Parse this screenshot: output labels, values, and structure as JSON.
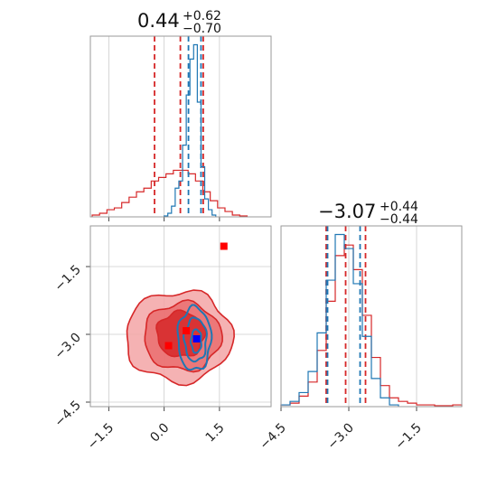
{
  "colors": {
    "red": "#d62728",
    "blue": "#1f77b4",
    "marker_blue": "#0000ff",
    "marker_red": "#ff0000",
    "grid": "#cccccc",
    "frame": "#9a9a9a"
  },
  "titles": {
    "p1": {
      "value": "0.44",
      "upper": "+0.62",
      "lower": "−0.70"
    },
    "p2": {
      "value": "−3.07",
      "upper": "+0.44",
      "lower": "−0.44"
    }
  },
  "chart_data": [
    {
      "type": "histogram",
      "panel": "top-left",
      "xlim": [
        -2.0,
        2.9
      ],
      "xticks": [
        -1.5,
        0.0,
        1.5
      ],
      "grid": true,
      "series": [
        {
          "color": "#d62728",
          "bin_centers": [
            -1.85,
            -1.65,
            -1.45,
            -1.25,
            -1.05,
            -0.85,
            -0.65,
            -0.45,
            -0.25,
            -0.05,
            0.15,
            0.35,
            0.55,
            0.75,
            0.95,
            1.15,
            1.35,
            1.55,
            1.75,
            1.95,
            2.15
          ],
          "heights": [
            0.01,
            0.02,
            0.04,
            0.05,
            0.08,
            0.11,
            0.14,
            0.16,
            0.2,
            0.22,
            0.24,
            0.26,
            0.26,
            0.24,
            0.2,
            0.14,
            0.09,
            0.05,
            0.03,
            0.01,
            0.005
          ],
          "quantile_lines": [
            -0.26,
            0.44,
            1.06
          ]
        },
        {
          "color": "#1f77b4",
          "bin_centers": [
            0.05,
            0.15,
            0.25,
            0.35,
            0.45,
            0.55,
            0.65,
            0.75,
            0.85,
            0.95,
            1.05,
            1.15,
            1.25,
            1.35
          ],
          "heights": [
            0.005,
            0.02,
            0.06,
            0.16,
            0.2,
            0.4,
            0.68,
            0.88,
            0.96,
            0.64,
            0.28,
            0.1,
            0.04,
            0.01
          ],
          "quantile_lines": [
            0.66,
            1.0
          ]
        }
      ]
    },
    {
      "type": "contour",
      "panel": "bottom-left",
      "xlim": [
        -2.0,
        2.9
      ],
      "ylim": [
        -4.6,
        -0.6
      ],
      "xticks": [
        -1.5,
        0.0,
        1.5
      ],
      "yticks": [
        -1.5,
        -3.0,
        -4.5
      ],
      "grid": true,
      "red_contours": [
        {
          "center": [
            0.4,
            -3.05
          ],
          "rx": 1.45,
          "ry": 1.0
        },
        {
          "center": [
            0.5,
            -3.05
          ],
          "rx": 1.05,
          "ry": 0.75
        },
        {
          "center": [
            0.45,
            -3.0
          ],
          "rx": 0.65,
          "ry": 0.5
        }
      ],
      "blue_contours": [
        {
          "center": [
            0.82,
            -3.1
          ],
          "rx": 0.45,
          "ry": 0.7
        },
        {
          "center": [
            0.85,
            -3.12
          ],
          "rx": 0.3,
          "ry": 0.48
        },
        {
          "center": [
            0.87,
            -3.15
          ],
          "rx": 0.14,
          "ry": 0.26
        }
      ],
      "markers": [
        {
          "x": 0.88,
          "y": -3.1,
          "color": "#0000ff"
        },
        {
          "x": 0.12,
          "y": -3.25,
          "color": "#ff0000"
        },
        {
          "x": 0.6,
          "y": -2.92,
          "color": "#ff0000"
        },
        {
          "x": 1.62,
          "y": -1.05,
          "color": "#ff0000"
        }
      ]
    },
    {
      "type": "histogram",
      "panel": "bottom-right",
      "xlim": [
        -4.5,
        -0.5
      ],
      "xticks": [
        -4.5,
        -3.0,
        -1.5
      ],
      "grid": true,
      "series": [
        {
          "color": "#d62728",
          "bin_centers": [
            -4.4,
            -4.2,
            -4.0,
            -3.8,
            -3.6,
            -3.4,
            -3.2,
            -3.0,
            -2.8,
            -2.6,
            -2.4,
            -2.2,
            -2.0,
            -1.8,
            -1.6,
            -1.4,
            -1.2,
            -1.0,
            -0.8,
            -0.6
          ],
          "heights": [
            0.01,
            0.02,
            0.06,
            0.14,
            0.32,
            0.6,
            0.86,
            0.92,
            0.78,
            0.52,
            0.28,
            0.12,
            0.05,
            0.03,
            0.02,
            0.01,
            0.01,
            0.005,
            0.005,
            0.01
          ],
          "quantile_lines": [
            -3.5,
            -3.07,
            -2.63
          ]
        },
        {
          "color": "#1f77b4",
          "bin_centers": [
            -4.4,
            -4.2,
            -4.0,
            -3.8,
            -3.6,
            -3.4,
            -3.2,
            -3.0,
            -2.8,
            -2.6,
            -2.4,
            -2.2,
            -2.0
          ],
          "heights": [
            0.01,
            0.03,
            0.08,
            0.2,
            0.42,
            0.72,
            0.98,
            0.9,
            0.7,
            0.4,
            0.16,
            0.05,
            0.01
          ],
          "quantile_lines": [
            -3.47,
            -2.75
          ]
        }
      ]
    }
  ]
}
